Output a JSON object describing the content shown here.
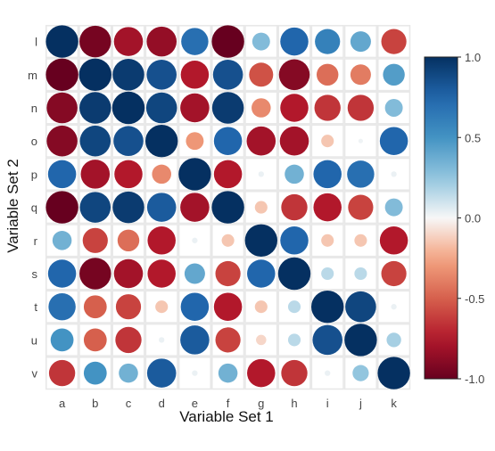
{
  "chart_data": {
    "type": "heatmap",
    "xlabel": "Variable Set 1",
    "ylabel": "Variable Set 2",
    "x_categories": [
      "a",
      "b",
      "c",
      "d",
      "e",
      "f",
      "g",
      "h",
      "i",
      "j",
      "k"
    ],
    "y_categories": [
      "l",
      "m",
      "n",
      "o",
      "p",
      "q",
      "r",
      "s",
      "t",
      "u",
      "v"
    ],
    "values": [
      [
        1.0,
        -0.95,
        -0.8,
        -0.85,
        0.7,
        -1.0,
        0.3,
        0.75,
        0.6,
        0.4,
        -0.6
      ],
      [
        -1.0,
        1.0,
        0.95,
        0.85,
        -0.75,
        0.85,
        -0.55,
        -0.9,
        -0.45,
        -0.4,
        0.45
      ],
      [
        -0.9,
        0.95,
        1.0,
        0.9,
        -0.8,
        0.95,
        -0.35,
        -0.75,
        -0.65,
        -0.65,
        0.3
      ],
      [
        -0.9,
        0.9,
        0.85,
        1.0,
        -0.3,
        0.75,
        -0.8,
        -0.8,
        -0.15,
        0.02,
        0.75
      ],
      [
        0.75,
        -0.8,
        -0.75,
        -0.35,
        1.0,
        -0.75,
        0.03,
        0.35,
        0.75,
        0.7,
        0.03
      ],
      [
        -1.0,
        0.9,
        0.95,
        0.8,
        -0.8,
        1.0,
        -0.15,
        -0.65,
        -0.75,
        -0.6,
        0.3
      ],
      [
        0.35,
        -0.6,
        -0.45,
        -0.75,
        0.03,
        -0.15,
        1.0,
        0.75,
        -0.15,
        -0.15,
        -0.75
      ],
      [
        0.75,
        -0.95,
        -0.8,
        -0.75,
        0.4,
        -0.6,
        0.75,
        1.0,
        0.15,
        0.15,
        -0.6
      ],
      [
        0.7,
        -0.5,
        -0.6,
        -0.15,
        0.75,
        -0.75,
        -0.15,
        0.15,
        1.0,
        0.9,
        0.03
      ],
      [
        0.5,
        -0.5,
        -0.65,
        0.03,
        0.8,
        -0.6,
        -0.1,
        0.15,
        0.85,
        1.0,
        0.2
      ],
      [
        -0.65,
        0.5,
        0.35,
        0.8,
        0.03,
        0.35,
        -0.75,
        -0.65,
        0.03,
        0.25,
        1.0
      ]
    ],
    "color_scale": {
      "range": [
        -1,
        1
      ],
      "ticks": [
        "1.0",
        "0.5",
        "0.0",
        "-0.5",
        "-1.0"
      ],
      "tick_values": [
        1,
        0.5,
        0,
        -0.5,
        -1
      ],
      "low_color": "#67001f",
      "mid_color": "#f7f7f7",
      "high_color": "#053061"
    }
  }
}
